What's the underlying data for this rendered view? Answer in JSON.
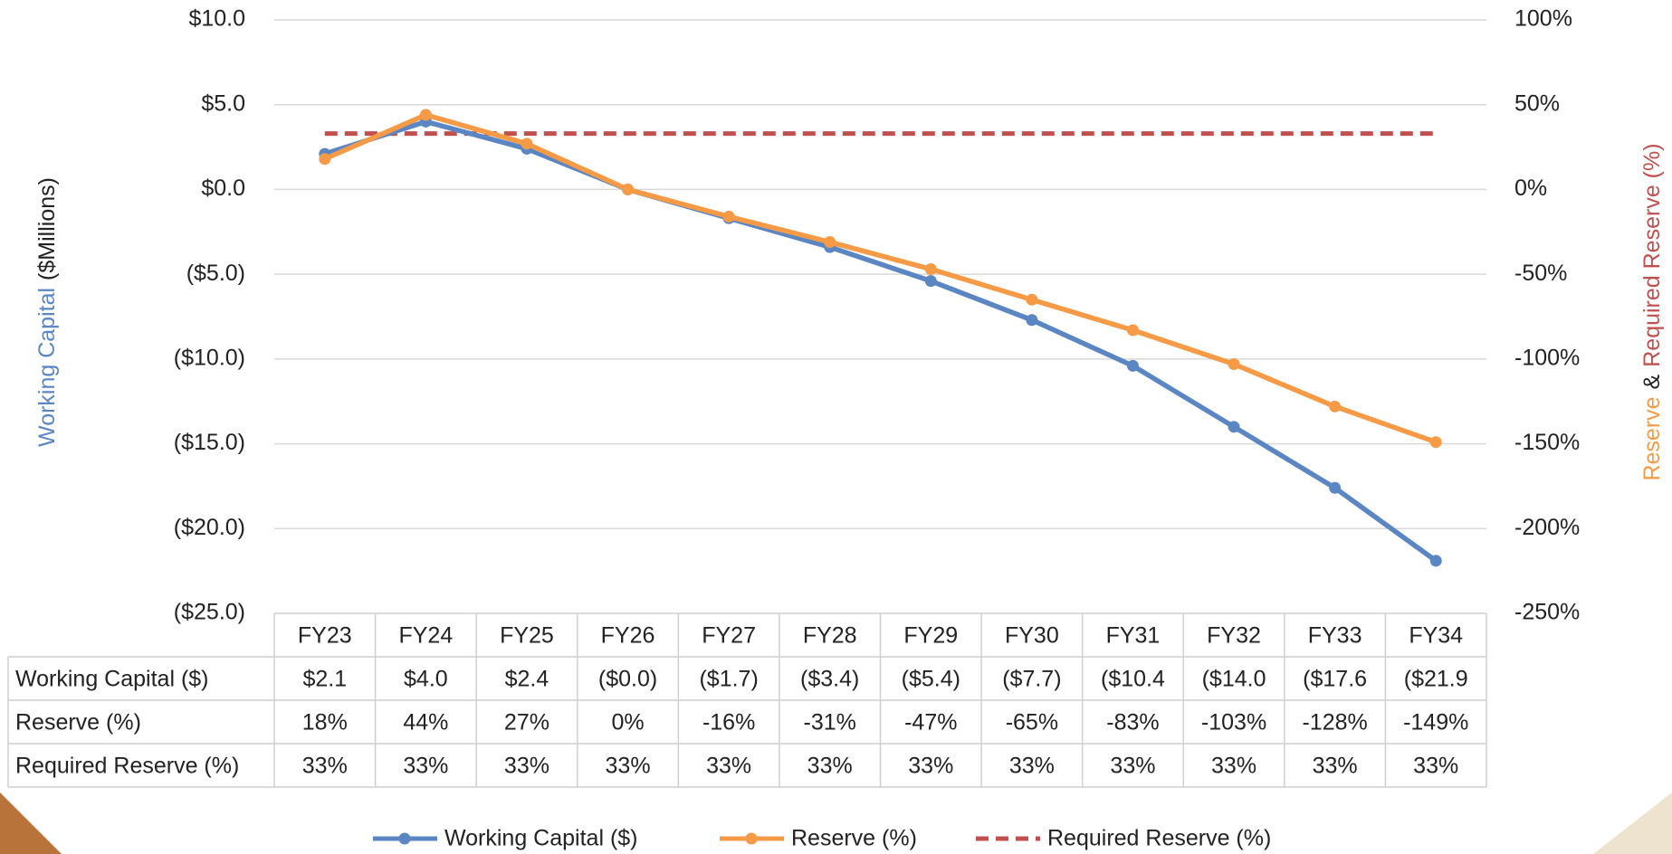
{
  "chart_data": {
    "type": "line",
    "categories": [
      "FY23",
      "FY24",
      "FY25",
      "FY26",
      "FY27",
      "FY28",
      "FY29",
      "FY30",
      "FY31",
      "FY32",
      "FY33",
      "FY34"
    ],
    "series": [
      {
        "name": "Working Capital ($)",
        "color": "#5a86c4",
        "axis": "y",
        "dashed": false,
        "markers": true,
        "values": [
          2.1,
          4.0,
          2.4,
          0,
          -1.7,
          -3.4,
          -5.4,
          -7.7,
          -10.4,
          -14.0,
          -17.6,
          -21.9
        ],
        "value_labels": [
          "$2.1",
          "$4.0",
          "$2.4",
          "($0.0)",
          "($1.7)",
          "($3.4)",
          "($5.4)",
          "($7.7)",
          "($10.4",
          "($14.0",
          "($17.6",
          "($21.9"
        ]
      },
      {
        "name": "Reserve (%)",
        "color": "#f79a46",
        "axis": "y2",
        "dashed": false,
        "markers": true,
        "values": [
          18,
          44,
          27,
          0,
          -16,
          -31,
          -47,
          -65,
          -83,
          -103,
          -128,
          -149
        ],
        "value_labels": [
          "18%",
          "44%",
          "27%",
          "0%",
          "-16%",
          "-31%",
          "-47%",
          "-65%",
          "-83%",
          "-103%",
          "-128%",
          "-149%"
        ]
      },
      {
        "name": "Required Reserve (%)",
        "color": "#c0504d",
        "axis": "y2",
        "dashed": true,
        "markers": false,
        "values": [
          33,
          33,
          33,
          33,
          33,
          33,
          33,
          33,
          33,
          33,
          33,
          33
        ],
        "value_labels": [
          "33%",
          "33%",
          "33%",
          "33%",
          "33%",
          "33%",
          "33%",
          "33%",
          "33%",
          "33%",
          "33%",
          "33%"
        ]
      }
    ],
    "ylabel": [
      {
        "text": "Working Capital",
        "color": "#5a86c4"
      },
      {
        "text": "($Millions)",
        "color": "#222222"
      }
    ],
    "y2label": [
      {
        "text": "Reserve",
        "color": "#f79a46"
      },
      {
        "text": "&",
        "color": "#222222"
      },
      {
        "text": "Required Reserve (%)",
        "color": "#c0504d"
      }
    ],
    "ylim": [
      -25,
      10
    ],
    "yticks": [
      {
        "value": 10,
        "label": "$10.0"
      },
      {
        "value": 5,
        "label": "$5.0"
      },
      {
        "value": 0,
        "label": "$0.0"
      },
      {
        "value": -5,
        "label": "($5.0)"
      },
      {
        "value": -10,
        "label": "($10.0)"
      },
      {
        "value": -15,
        "label": "($15.0)"
      },
      {
        "value": -20,
        "label": "($20.0)"
      },
      {
        "value": -25,
        "label": "($25.0)"
      }
    ],
    "y2lim": [
      -250,
      100
    ],
    "y2ticks": [
      {
        "value": 100,
        "label": "100%"
      },
      {
        "value": 50,
        "label": "50%"
      },
      {
        "value": 0,
        "label": "0%"
      },
      {
        "value": -50,
        "label": "-50%"
      },
      {
        "value": -100,
        "label": "-100%"
      },
      {
        "value": -150,
        "label": "-150%"
      },
      {
        "value": -200,
        "label": "-200%"
      },
      {
        "value": -250,
        "label": "-250%"
      }
    ],
    "grid": true,
    "legend": "bottom"
  }
}
